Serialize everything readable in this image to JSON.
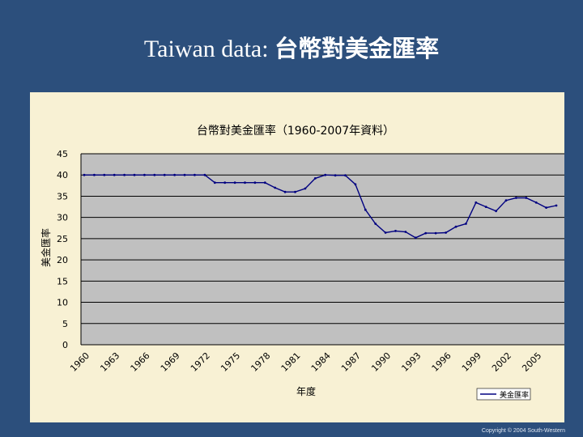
{
  "slide": {
    "title_en": "Taiwan data:",
    "title_zh": "台幣對美金匯率",
    "copyright": "Copyright © 2004 South-Western",
    "background_color": "#2c4f7c"
  },
  "chart_data": {
    "type": "line",
    "title": "台幣對美金匯率（1960-2007年資料）",
    "xlabel": "年度",
    "ylabel": "美金匯率",
    "xlim": [
      1960,
      2007
    ],
    "ylim": [
      0,
      45
    ],
    "y_ticks": [
      0,
      5,
      10,
      15,
      20,
      25,
      30,
      35,
      40,
      45
    ],
    "x_tick_labels": [
      "1960",
      "1963",
      "1966",
      "1969",
      "1972",
      "1975",
      "1978",
      "1981",
      "1984",
      "1987",
      "1990",
      "1993",
      "1996",
      "1999",
      "2002",
      "2005"
    ],
    "grid": true,
    "legend_position": "bottom-right",
    "plot_background": "#c0c0c0",
    "line_color": "#000080",
    "series": [
      {
        "name": "美金匯率",
        "x": [
          1960,
          1961,
          1962,
          1963,
          1964,
          1965,
          1966,
          1967,
          1968,
          1969,
          1970,
          1971,
          1972,
          1973,
          1974,
          1975,
          1976,
          1977,
          1978,
          1979,
          1980,
          1981,
          1982,
          1983,
          1984,
          1985,
          1986,
          1987,
          1988,
          1989,
          1990,
          1991,
          1992,
          1993,
          1994,
          1995,
          1996,
          1997,
          1998,
          1999,
          2000,
          2001,
          2002,
          2003,
          2004,
          2005,
          2006,
          2007
        ],
        "values": [
          40,
          40,
          40,
          40,
          40,
          40,
          40,
          40,
          40,
          40,
          40,
          40,
          40,
          38.2,
          38.2,
          38.2,
          38.2,
          38.2,
          38.2,
          37,
          36,
          36,
          36.8,
          39.2,
          40,
          39.9,
          39.9,
          37.8,
          31.8,
          28.5,
          26.4,
          26.8,
          26.6,
          25.2,
          26.3,
          26.3,
          26.4,
          27.8,
          28.5,
          33.5,
          32.5,
          31.5,
          34,
          34.6,
          34.6,
          33.5,
          32.3,
          32.8
        ]
      }
    ]
  }
}
